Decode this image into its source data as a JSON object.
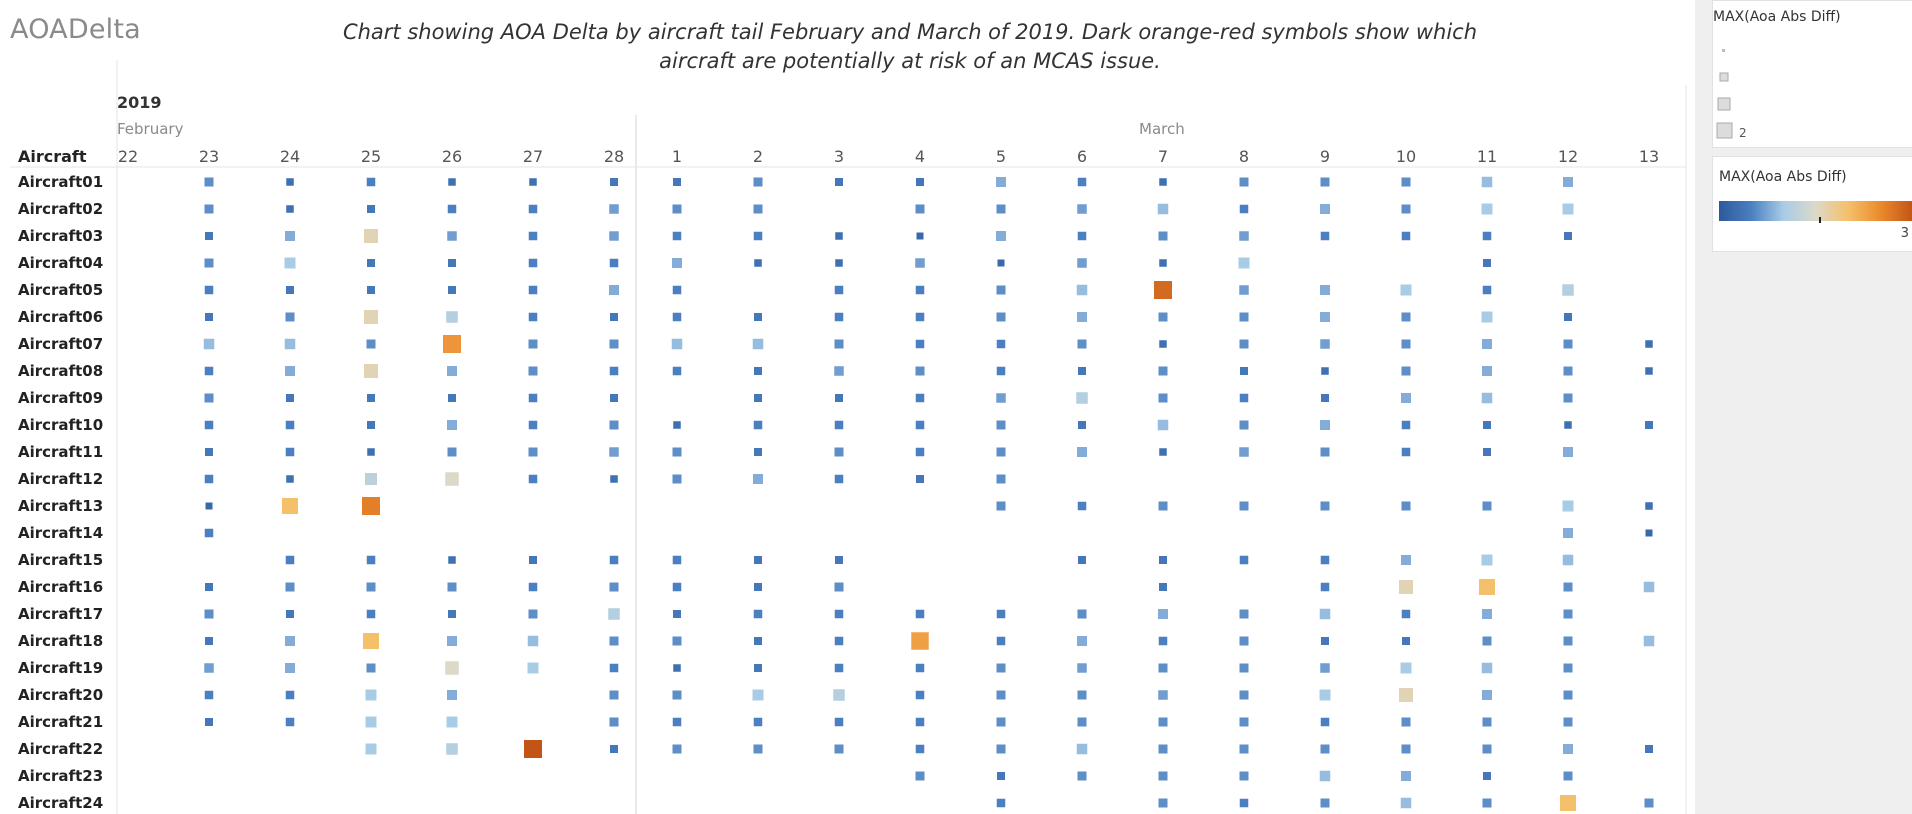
{
  "header": {
    "app_title": "AOADelta",
    "chart_title": "Chart showing AOA Delta by aircraft tail February and March of 2019. Dark orange-red symbols show which aircraft are potentially at risk of an MCAS issue."
  },
  "legends": {
    "size": {
      "title": "MAX(Aoa Abs Diff)",
      "max_label": "2"
    },
    "color": {
      "title": "MAX(Aoa Abs Diff)",
      "max_label": "3",
      "range": [
        0,
        3
      ],
      "colors": [
        "#2c5a9c",
        "#4a7fc1",
        "#a9cce6",
        "#dcd9c8",
        "#f5c06a",
        "#eb8a2c",
        "#c25416"
      ]
    }
  },
  "chart_data": {
    "type": "heatmap",
    "title": "Chart showing AOA Delta by aircraft tail February and March of 2019. Dark orange-red symbols show which aircraft are potentially at risk of an MCAS issue.",
    "year": "2019",
    "row_header": "Aircraft",
    "months": [
      {
        "name": "February",
        "days": [
          "22",
          "23",
          "24",
          "25",
          "26",
          "27",
          "28"
        ]
      },
      {
        "name": "March",
        "days": [
          "1",
          "2",
          "3",
          "4",
          "5",
          "6",
          "7",
          "8",
          "9",
          "10",
          "11",
          "12",
          "13"
        ]
      }
    ],
    "measure": "MAX(Aoa Abs Diff)",
    "color_range": [
      0,
      3
    ],
    "rows": [
      {
        "aircraft": "Aircraft01",
        "values": [
          null,
          0.6,
          0.3,
          0.5,
          0.3,
          0.3,
          0.4,
          0.4,
          0.6,
          0.4,
          0.4,
          0.8,
          0.5,
          0.3,
          0.6,
          0.6,
          0.6,
          0.9,
          0.8,
          null
        ]
      },
      {
        "aircraft": "Aircraft02",
        "values": [
          null,
          0.6,
          0.3,
          0.4,
          0.5,
          0.5,
          0.7,
          0.6,
          0.6,
          null,
          0.6,
          0.6,
          0.7,
          0.9,
          0.5,
          0.8,
          0.6,
          1.0,
          1.0,
          null
        ]
      },
      {
        "aircraft": "Aircraft03",
        "values": [
          null,
          0.4,
          0.8,
          1.6,
          0.7,
          0.5,
          0.7,
          0.5,
          0.5,
          0.3,
          0.2,
          0.8,
          0.5,
          0.6,
          0.7,
          0.5,
          0.5,
          0.5,
          0.4,
          null
        ]
      },
      {
        "aircraft": "Aircraft04",
        "values": [
          null,
          0.6,
          1.0,
          0.4,
          0.4,
          0.5,
          0.5,
          0.8,
          0.3,
          0.3,
          0.7,
          0.2,
          0.7,
          0.3,
          1.0,
          null,
          null,
          0.4,
          null,
          null
        ]
      },
      {
        "aircraft": "Aircraft05",
        "values": [
          null,
          0.5,
          0.4,
          0.4,
          0.4,
          0.5,
          0.8,
          0.5,
          null,
          0.5,
          0.5,
          0.6,
          0.9,
          2.8,
          0.7,
          0.8,
          1.0,
          0.5,
          1.1,
          null
        ]
      },
      {
        "aircraft": "Aircraft06",
        "values": [
          null,
          0.4,
          0.6,
          1.6,
          1.1,
          0.5,
          0.4,
          0.5,
          0.4,
          0.5,
          0.5,
          0.6,
          0.8,
          0.6,
          0.6,
          0.8,
          0.6,
          1.0,
          0.4,
          null
        ]
      },
      {
        "aircraft": "Aircraft07",
        "values": [
          null,
          0.9,
          0.9,
          0.6,
          2.4,
          0.6,
          0.6,
          0.9,
          0.9,
          0.6,
          0.5,
          0.5,
          0.6,
          0.3,
          0.6,
          0.7,
          0.6,
          0.8,
          0.6,
          0.3
        ]
      },
      {
        "aircraft": "Aircraft08",
        "values": [
          null,
          0.5,
          0.8,
          1.6,
          0.8,
          0.6,
          0.5,
          0.5,
          0.4,
          0.7,
          0.6,
          0.5,
          0.4,
          0.6,
          0.4,
          0.3,
          0.6,
          0.8,
          0.6,
          0.3
        ]
      },
      {
        "aircraft": "Aircraft09",
        "values": [
          null,
          0.6,
          0.4,
          0.4,
          0.4,
          0.5,
          0.4,
          null,
          0.4,
          0.4,
          0.5,
          0.7,
          1.1,
          0.6,
          0.5,
          0.4,
          0.8,
          0.9,
          0.6,
          null
        ]
      },
      {
        "aircraft": "Aircraft10",
        "values": [
          null,
          0.5,
          0.5,
          0.4,
          0.8,
          0.5,
          0.6,
          0.3,
          0.5,
          0.5,
          0.5,
          0.6,
          0.4,
          0.9,
          0.6,
          0.8,
          0.5,
          0.4,
          0.3,
          0.4
        ]
      },
      {
        "aircraft": "Aircraft11",
        "values": [
          null,
          0.4,
          0.5,
          0.3,
          0.6,
          0.6,
          0.7,
          0.6,
          0.4,
          0.6,
          0.5,
          0.6,
          0.8,
          0.3,
          0.7,
          0.6,
          0.5,
          0.4,
          0.8,
          null
        ]
      },
      {
        "aircraft": "Aircraft12",
        "values": [
          null,
          0.5,
          0.3,
          1.2,
          1.5,
          0.5,
          0.3,
          0.6,
          0.8,
          0.5,
          0.4,
          0.6,
          null,
          null,
          null,
          null,
          null,
          null,
          null,
          null
        ]
      },
      {
        "aircraft": "Aircraft13",
        "values": [
          null,
          0.2,
          2.0,
          2.6,
          null,
          null,
          null,
          null,
          null,
          null,
          null,
          0.6,
          0.5,
          0.6,
          0.6,
          0.6,
          0.6,
          0.6,
          1.0,
          0.3
        ]
      },
      {
        "aircraft": "Aircraft14",
        "values": [
          null,
          0.5,
          null,
          null,
          null,
          null,
          null,
          null,
          null,
          null,
          null,
          null,
          null,
          null,
          null,
          null,
          null,
          null,
          0.8,
          0.2
        ]
      },
      {
        "aircraft": "Aircraft15",
        "values": [
          null,
          null,
          0.5,
          0.5,
          0.3,
          0.4,
          0.5,
          0.5,
          0.4,
          0.4,
          null,
          null,
          0.4,
          0.4,
          0.5,
          0.5,
          0.8,
          1.0,
          0.9,
          null
        ]
      },
      {
        "aircraft": "Aircraft16",
        "values": [
          null,
          0.4,
          0.6,
          0.6,
          0.6,
          0.5,
          0.6,
          0.5,
          0.4,
          0.6,
          null,
          null,
          null,
          0.4,
          null,
          0.5,
          1.6,
          2.0,
          0.6,
          0.9
        ]
      },
      {
        "aircraft": "Aircraft17",
        "values": [
          null,
          0.6,
          0.4,
          0.5,
          0.4,
          0.6,
          1.1,
          0.4,
          0.5,
          0.5,
          0.5,
          0.5,
          0.6,
          0.8,
          0.6,
          0.9,
          0.5,
          0.8,
          0.6,
          null
        ]
      },
      {
        "aircraft": "Aircraft18",
        "values": [
          null,
          0.4,
          0.8,
          2.0,
          0.8,
          0.9,
          0.6,
          0.6,
          0.4,
          0.5,
          2.3,
          0.5,
          0.8,
          0.5,
          0.6,
          0.4,
          0.4,
          0.6,
          0.6,
          0.9
        ]
      },
      {
        "aircraft": "Aircraft19",
        "values": [
          null,
          0.7,
          0.8,
          0.6,
          1.5,
          1.0,
          0.5,
          0.3,
          0.4,
          0.5,
          0.5,
          0.6,
          0.7,
          0.6,
          0.6,
          0.7,
          1.0,
          0.9,
          0.6,
          null
        ]
      },
      {
        "aircraft": "Aircraft20",
        "values": [
          null,
          0.5,
          0.5,
          1.0,
          0.8,
          null,
          0.6,
          0.6,
          1.0,
          1.1,
          0.5,
          0.6,
          0.6,
          0.7,
          0.6,
          1.0,
          1.6,
          0.8,
          0.6,
          null
        ]
      },
      {
        "aircraft": "Aircraft21",
        "values": [
          null,
          0.4,
          0.5,
          1.0,
          1.0,
          null,
          0.6,
          0.5,
          0.5,
          0.5,
          0.5,
          0.6,
          0.6,
          0.6,
          0.6,
          0.5,
          0.6,
          0.6,
          0.6,
          null
        ]
      },
      {
        "aircraft": "Aircraft22",
        "values": [
          null,
          null,
          null,
          1.0,
          1.1,
          3.0,
          0.4,
          0.6,
          0.6,
          0.6,
          0.5,
          0.6,
          0.9,
          0.6,
          0.6,
          0.6,
          0.6,
          0.6,
          0.8,
          0.4
        ]
      },
      {
        "aircraft": "Aircraft23",
        "values": [
          null,
          null,
          null,
          null,
          null,
          null,
          null,
          null,
          null,
          null,
          0.6,
          0.4,
          0.6,
          0.6,
          0.6,
          0.9,
          0.8,
          0.4,
          0.6,
          null
        ]
      },
      {
        "aircraft": "Aircraft24",
        "values": [
          null,
          null,
          null,
          null,
          null,
          null,
          null,
          null,
          null,
          null,
          null,
          0.5,
          null,
          0.6,
          0.5,
          0.6,
          0.9,
          0.6,
          2.0,
          0.6
        ]
      }
    ]
  }
}
